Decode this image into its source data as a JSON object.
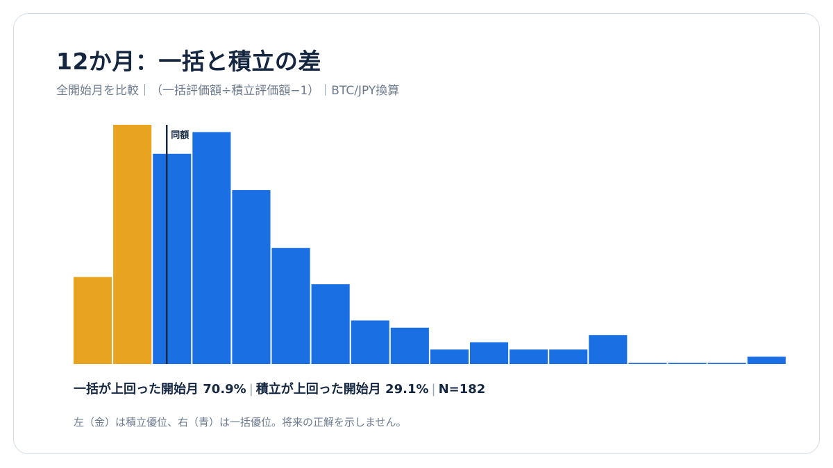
{
  "header": {
    "title": "12か月：一括と積立の差",
    "subtitle": "全開始月を比較｜（一括評価額÷積立評価額−1）｜BTC/JPY換算"
  },
  "chart_data": {
    "type": "bar",
    "values": [
      24,
      66,
      58,
      64,
      48,
      32,
      22,
      12,
      10,
      4,
      6,
      4,
      4,
      8,
      0.3,
      0.3,
      0.3,
      2
    ],
    "series_colors": [
      "#e8a321",
      "#e8a321",
      "#1a6fe3",
      "#1a6fe3",
      "#1a6fe3",
      "#1a6fe3",
      "#1a6fe3",
      "#1a6fe3",
      "#1a6fe3",
      "#1a6fe3",
      "#1a6fe3",
      "#1a6fe3",
      "#1a6fe3",
      "#1a6fe3",
      "#1a6fe3",
      "#1a6fe3",
      "#1a6fe3",
      "#1a6fe3"
    ],
    "ylim": [
      0,
      66
    ],
    "reference_line": {
      "label": "同額",
      "position_in_bins": 2.35,
      "color": "#142640"
    },
    "colors": {
      "lump_sum_better": "#1a6fe3",
      "dca_better": "#e8a321"
    }
  },
  "stats": {
    "lump_sum": "一括が上回った開始月 70.9%",
    "dca": "積立が上回った開始月 29.1%",
    "n": "N=182"
  },
  "footnote": "左（金）は積立優位、右（青）は一括優位。将来の正解を示しません。"
}
